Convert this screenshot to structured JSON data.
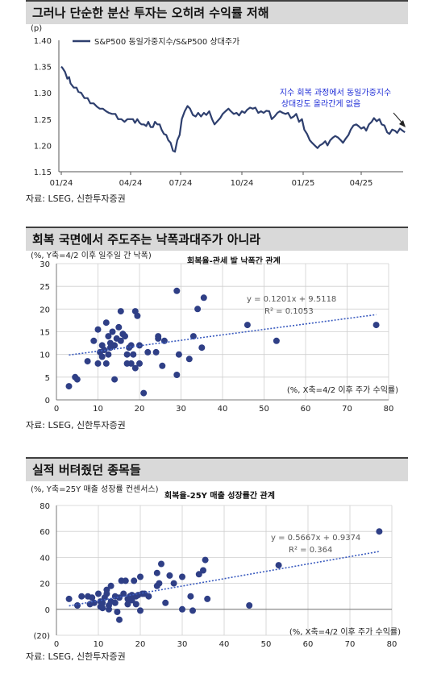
{
  "sections": [
    {
      "heading": "그러나 단순한 분산 투자는 오히려 수익률 저해",
      "source": "자료: LSEG, 신한투자증권"
    },
    {
      "heading": "회복 국면에서 주도주는 낙폭과대주가 아니라",
      "source": "자료: LSEG, 신한투자증권"
    },
    {
      "heading": "실적 버텨줬던 종목들",
      "source": "자료: LSEG, 신한투자증권"
    }
  ],
  "chart_data": [
    {
      "type": "line",
      "unit_label": "(p)",
      "series": [
        {
          "name": "S&P500 동일가중지수/S&P500 상대주가",
          "color": "#2e3f6e",
          "points": [
            [
              0,
              1.35
            ],
            [
              0.03,
              1.347
            ],
            [
              0.08,
              1.34
            ],
            [
              0.13,
              1.327
            ],
            [
              0.17,
              1.33
            ],
            [
              0.2,
              1.318
            ],
            [
              0.27,
              1.31
            ],
            [
              0.33,
              1.31
            ],
            [
              0.37,
              1.302
            ],
            [
              0.43,
              1.3
            ],
            [
              0.5,
              1.29
            ],
            [
              0.57,
              1.29
            ],
            [
              0.63,
              1.28
            ],
            [
              0.7,
              1.28
            ],
            [
              0.77,
              1.274
            ],
            [
              0.83,
              1.27
            ],
            [
              0.9,
              1.27
            ],
            [
              0.97,
              1.265
            ],
            [
              1.03,
              1.262
            ],
            [
              1.1,
              1.26
            ],
            [
              1.17,
              1.26
            ],
            [
              1.23,
              1.25
            ],
            [
              1.3,
              1.25
            ],
            [
              1.37,
              1.245
            ],
            [
              1.43,
              1.25
            ],
            [
              1.5,
              1.25
            ],
            [
              1.57,
              1.25
            ],
            [
              1.63,
              1.243
            ],
            [
              1.7,
              1.25
            ],
            [
              1.77,
              1.243
            ],
            [
              1.83,
              1.24
            ],
            [
              1.9,
              1.24
            ],
            [
              1.97,
              1.237
            ],
            [
              2.03,
              1.245
            ],
            [
              2.1,
              1.235
            ],
            [
              2.17,
              1.235
            ],
            [
              2.23,
              1.245
            ],
            [
              2.3,
              1.24
            ],
            [
              2.37,
              1.24
            ],
            [
              2.43,
              1.23
            ],
            [
              2.5,
              1.222
            ],
            [
              2.57,
              1.22
            ],
            [
              2.63,
              1.21
            ],
            [
              2.7,
              1.205
            ],
            [
              2.77,
              1.19
            ],
            [
              2.83,
              1.188
            ],
            [
              2.9,
              1.21
            ],
            [
              2.97,
              1.22
            ],
            [
              3.03,
              1.25
            ],
            [
              3.1,
              1.265
            ],
            [
              3.17,
              1.275
            ],
            [
              3.23,
              1.27
            ],
            [
              3.3,
              1.258
            ],
            [
              3.37,
              1.255
            ],
            [
              3.43,
              1.262
            ],
            [
              3.5,
              1.255
            ],
            [
              3.57,
              1.262
            ],
            [
              3.63,
              1.258
            ],
            [
              3.7,
              1.265
            ],
            [
              3.77,
              1.25
            ],
            [
              3.83,
              1.24
            ],
            [
              3.9,
              1.246
            ],
            [
              3.97,
              1.252
            ],
            [
              4.03,
              1.26
            ],
            [
              4.1,
              1.265
            ],
            [
              4.17,
              1.27
            ],
            [
              4.23,
              1.265
            ],
            [
              4.3,
              1.26
            ],
            [
              4.37,
              1.262
            ],
            [
              4.43,
              1.257
            ],
            [
              4.5,
              1.265
            ],
            [
              4.57,
              1.262
            ],
            [
              4.63,
              1.268
            ],
            [
              4.7,
              1.272
            ],
            [
              4.77,
              1.27
            ],
            [
              4.83,
              1.272
            ],
            [
              4.9,
              1.262
            ],
            [
              4.97,
              1.265
            ],
            [
              5.03,
              1.262
            ],
            [
              5.1,
              1.266
            ],
            [
              5.17,
              1.265
            ],
            [
              5.23,
              1.25
            ],
            [
              5.3,
              1.255
            ],
            [
              5.37,
              1.262
            ],
            [
              5.43,
              1.265
            ],
            [
              5.5,
              1.262
            ],
            [
              5.57,
              1.26
            ],
            [
              5.63,
              1.262
            ],
            [
              5.7,
              1.252
            ],
            [
              5.77,
              1.255
            ],
            [
              5.83,
              1.26
            ],
            [
              5.9,
              1.245
            ],
            [
              5.97,
              1.25
            ],
            [
              6.03,
              1.23
            ],
            [
              6.1,
              1.222
            ],
            [
              6.17,
              1.21
            ],
            [
              6.23,
              1.205
            ],
            [
              6.3,
              1.2
            ],
            [
              6.37,
              1.195
            ],
            [
              6.43,
              1.2
            ],
            [
              6.5,
              1.203
            ],
            [
              6.57,
              1.208
            ],
            [
              6.63,
              1.2
            ],
            [
              6.7,
              1.21
            ],
            [
              6.77,
              1.215
            ],
            [
              6.83,
              1.218
            ],
            [
              6.9,
              1.215
            ],
            [
              6.97,
              1.21
            ],
            [
              7.03,
              1.205
            ],
            [
              7.1,
              1.213
            ],
            [
              7.17,
              1.22
            ],
            [
              7.23,
              1.23
            ],
            [
              7.3,
              1.238
            ],
            [
              7.37,
              1.24
            ],
            [
              7.43,
              1.237
            ],
            [
              7.5,
              1.232
            ],
            [
              7.57,
              1.235
            ],
            [
              7.63,
              1.228
            ],
            [
              7.7,
              1.24
            ],
            [
              7.77,
              1.245
            ],
            [
              7.83,
              1.252
            ],
            [
              7.9,
              1.246
            ],
            [
              7.97,
              1.25
            ],
            [
              8.03,
              1.24
            ],
            [
              8.1,
              1.238
            ],
            [
              8.17,
              1.225
            ],
            [
              8.23,
              1.222
            ],
            [
              8.3,
              1.23
            ],
            [
              8.37,
              1.228
            ],
            [
              8.43,
              1.224
            ],
            [
              8.5,
              1.232
            ],
            [
              8.57,
              1.228
            ],
            [
              8.63,
              1.225
            ]
          ]
        }
      ],
      "x_ticks": [
        "01/24",
        "04/24",
        "07/24",
        "10/24",
        "01/25",
        "04/25"
      ],
      "y_ticks": [
        "1.15",
        "1.20",
        "1.25",
        "1.30",
        "1.35",
        "1.40"
      ],
      "ylim": [
        1.15,
        1.4
      ],
      "annotation": [
        "지수 회복 과정에서 동일가중지수",
        "상대강도 올라간게 없음"
      ]
    },
    {
      "type": "scatter",
      "title": "회복율-관세 발 낙폭간 관계",
      "ylabel": "(%, Y축=4/2 이후 일주일 간 낙폭)",
      "xlabel": "(%, X축=4/2 이후 주가 수익률)",
      "x_ticks": [
        "0",
        "10",
        "20",
        "30",
        "40",
        "50",
        "60",
        "70",
        "80"
      ],
      "y_ticks": [
        "0",
        "5",
        "10",
        "15",
        "20",
        "25",
        "30"
      ],
      "xlim": [
        0,
        80
      ],
      "ylim": [
        0,
        30
      ],
      "equation": "y = 0.1201x + 9.5118",
      "r2": "R² = 0.1053",
      "trend": {
        "slope": 0.1201,
        "intercept": 9.5118
      },
      "points": [
        [
          3,
          3
        ],
        [
          4.5,
          5
        ],
        [
          5,
          4.5
        ],
        [
          7.5,
          8.5
        ],
        [
          9,
          13
        ],
        [
          10,
          15.5
        ],
        [
          10,
          8
        ],
        [
          10.5,
          10.5
        ],
        [
          11,
          12
        ],
        [
          11,
          9.5
        ],
        [
          11.5,
          11
        ],
        [
          12,
          17
        ],
        [
          12,
          8
        ],
        [
          12.5,
          14
        ],
        [
          12.5,
          10
        ],
        [
          13,
          11.5
        ],
        [
          13,
          12.5
        ],
        [
          13.5,
          15
        ],
        [
          14,
          4.5
        ],
        [
          14,
          12
        ],
        [
          14.5,
          13.5
        ],
        [
          15,
          16
        ],
        [
          15.5,
          19.5
        ],
        [
          15.5,
          13
        ],
        [
          16,
          14.5
        ],
        [
          16,
          14.5
        ],
        [
          16.5,
          14
        ],
        [
          17,
          10
        ],
        [
          17,
          8
        ],
        [
          17.5,
          11.5
        ],
        [
          18,
          12
        ],
        [
          18,
          8
        ],
        [
          18.5,
          10
        ],
        [
          19,
          7
        ],
        [
          19,
          19.5
        ],
        [
          19.5,
          18.5
        ],
        [
          20,
          12
        ],
        [
          20,
          8
        ],
        [
          21,
          1.5
        ],
        [
          22,
          10.5
        ],
        [
          24,
          10.5
        ],
        [
          24.5,
          13.5
        ],
        [
          24.5,
          14
        ],
        [
          25.5,
          7.5
        ],
        [
          26,
          13
        ],
        [
          29,
          5.5
        ],
        [
          29,
          24
        ],
        [
          29.5,
          10
        ],
        [
          32,
          9
        ],
        [
          33,
          14
        ],
        [
          34,
          20
        ],
        [
          35,
          11.5
        ],
        [
          35.5,
          22.5
        ],
        [
          46,
          16.5
        ],
        [
          53,
          13
        ],
        [
          77,
          16.5
        ]
      ]
    },
    {
      "type": "scatter",
      "title": "회복율-25Y 매출 성장률간 관계",
      "ylabel": "(%, Y축=25Y 매출 성장률 컨센서스)",
      "xlabel": "(%, X축=4/2 이후 주가 수익률)",
      "x_ticks": [
        "0",
        "10",
        "20",
        "30",
        "40",
        "50",
        "60",
        "70",
        "80"
      ],
      "y_ticks": [
        "(20)",
        "0",
        "20",
        "40",
        "60",
        "80"
      ],
      "xlim": [
        0,
        80
      ],
      "ylim": [
        -20,
        80
      ],
      "equation": "y = 0.5667x + 0.9374",
      "r2": "R² = 0.364",
      "trend": {
        "slope": 0.5667,
        "intercept": 0.9374
      },
      "points": [
        [
          3,
          8
        ],
        [
          5,
          3
        ],
        [
          6,
          10
        ],
        [
          7.5,
          10
        ],
        [
          8,
          4
        ],
        [
          8.5,
          9
        ],
        [
          9,
          5
        ],
        [
          10,
          12
        ],
        [
          10.5,
          2
        ],
        [
          10.5,
          6
        ],
        [
          11,
          5
        ],
        [
          11,
          1
        ],
        [
          11.5,
          9
        ],
        [
          12,
          15
        ],
        [
          12,
          12
        ],
        [
          12.5,
          0
        ],
        [
          12.5,
          3
        ],
        [
          13,
          18
        ],
        [
          13,
          6
        ],
        [
          14,
          10
        ],
        [
          14,
          5
        ],
        [
          14.5,
          -2
        ],
        [
          15,
          -8
        ],
        [
          15,
          9
        ],
        [
          15.5,
          22
        ],
        [
          16,
          12
        ],
        [
          16.5,
          22
        ],
        [
          17,
          8
        ],
        [
          17,
          4
        ],
        [
          17.5,
          10
        ],
        [
          18,
          11
        ],
        [
          18,
          7
        ],
        [
          18.5,
          22
        ],
        [
          19,
          4
        ],
        [
          19,
          10
        ],
        [
          19.5,
          11
        ],
        [
          20,
          -1
        ],
        [
          20,
          25
        ],
        [
          20.5,
          12
        ],
        [
          21,
          12
        ],
        [
          22,
          10
        ],
        [
          24,
          28
        ],
        [
          24,
          18
        ],
        [
          24.5,
          20
        ],
        [
          25,
          35
        ],
        [
          26,
          5
        ],
        [
          27,
          26
        ],
        [
          28,
          20
        ],
        [
          30,
          25
        ],
        [
          30,
          0
        ],
        [
          32,
          10
        ],
        [
          32.5,
          -1
        ],
        [
          34,
          27
        ],
        [
          35,
          30
        ],
        [
          35.5,
          38
        ],
        [
          36,
          8
        ],
        [
          46,
          3
        ],
        [
          53,
          34
        ],
        [
          77,
          60
        ]
      ]
    }
  ]
}
